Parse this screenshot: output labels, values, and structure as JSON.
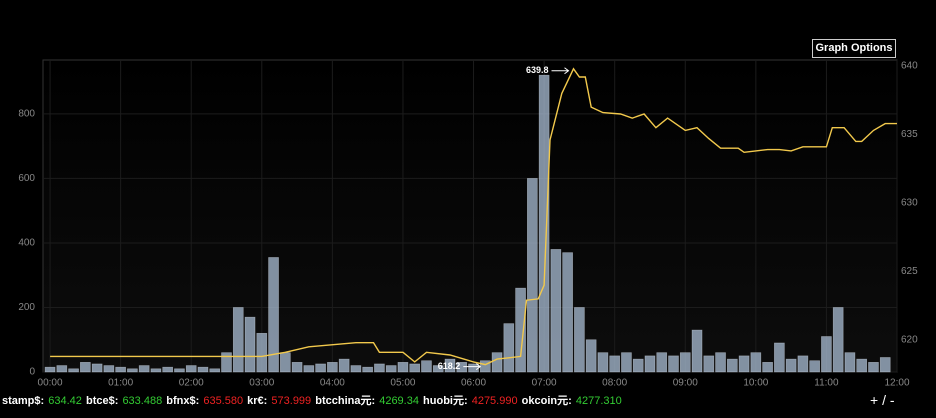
{
  "chart_data": {
    "type": "combo",
    "xlim": [
      -6,
      720
    ],
    "xticks": [
      {
        "value": 0,
        "label": "00:00"
      },
      {
        "value": 60,
        "label": "01:00"
      },
      {
        "value": 120,
        "label": "02:00"
      },
      {
        "value": 180,
        "label": "03:00"
      },
      {
        "value": 240,
        "label": "04:00"
      },
      {
        "value": 300,
        "label": "05:00"
      },
      {
        "value": 360,
        "label": "06:00"
      },
      {
        "value": 420,
        "label": "07:00"
      },
      {
        "value": 480,
        "label": "08:00"
      },
      {
        "value": 540,
        "label": "09:00"
      },
      {
        "value": 600,
        "label": "10:00"
      },
      {
        "value": 660,
        "label": "11:00"
      },
      {
        "value": 720,
        "label": "12:00"
      }
    ],
    "ylim": [
      0,
      967
    ],
    "yticks": [
      0,
      200,
      400,
      600,
      800
    ],
    "y2lim": [
      617.66,
      640.44
    ],
    "y2ticks": [
      620,
      625,
      630,
      635,
      640
    ],
    "grid": true,
    "series": [
      {
        "type": "bar",
        "color": "#a9bdd4",
        "x": [
          0,
          10,
          20,
          30,
          40,
          50,
          60,
          70,
          80,
          90,
          100,
          110,
          120,
          130,
          140,
          150,
          160,
          170,
          180,
          190,
          200,
          210,
          220,
          230,
          240,
          250,
          260,
          270,
          280,
          290,
          300,
          310,
          320,
          330,
          340,
          350,
          360,
          370,
          380,
          390,
          400,
          410,
          420,
          430,
          440,
          450,
          460,
          470,
          480,
          490,
          500,
          510,
          520,
          530,
          540,
          550,
          560,
          570,
          580,
          590,
          600,
          610,
          620,
          630,
          640,
          650,
          660,
          670,
          680,
          690,
          700,
          710
        ],
        "values": [
          15,
          20,
          10,
          30,
          25,
          20,
          15,
          10,
          20,
          10,
          15,
          10,
          20,
          15,
          10,
          60,
          200,
          170,
          120,
          355,
          60,
          30,
          20,
          25,
          30,
          40,
          20,
          15,
          25,
          20,
          30,
          25,
          35,
          20,
          40,
          30,
          25,
          35,
          60,
          150,
          260,
          600,
          920,
          380,
          370,
          200,
          100,
          60,
          50,
          60,
          40,
          50,
          60,
          50,
          60,
          130,
          50,
          60,
          40,
          50,
          60,
          30,
          90,
          40,
          50,
          35,
          110,
          200,
          60,
          40,
          30,
          45
        ]
      },
      {
        "type": "line",
        "axis": "y2",
        "color": "#f2c94c",
        "x": [
          0,
          180,
          200,
          220,
          260,
          275,
          280,
          300,
          310,
          320,
          340,
          360,
          370,
          380,
          390,
          400,
          405,
          415,
          420,
          425,
          435,
          445,
          450,
          455,
          460,
          470,
          485,
          495,
          505,
          515,
          525,
          540,
          550,
          560,
          570,
          585,
          590,
          600,
          610,
          620,
          630,
          640,
          650,
          660,
          665,
          675,
          685,
          690,
          700,
          710,
          720
        ],
        "values": [
          618.8,
          618.8,
          619.1,
          619.5,
          619.8,
          619.8,
          619.1,
          619.1,
          618.4,
          619.1,
          618.9,
          618.4,
          618.2,
          618.6,
          618.7,
          618.8,
          622.9,
          623,
          624,
          634.6,
          638,
          639.8,
          639.2,
          639.2,
          637,
          636.6,
          636.5,
          636.2,
          636.5,
          635.5,
          636.2,
          635.3,
          635.5,
          634.7,
          634,
          634,
          633.7,
          633.8,
          633.9,
          633.9,
          633.8,
          634.1,
          634.1,
          634.1,
          635.5,
          635.5,
          634.5,
          634.5,
          635.3,
          635.8,
          635.8
        ]
      }
    ],
    "annotations": [
      {
        "label": "639.8",
        "x": 445,
        "y": 639.8
      },
      {
        "label": "618.2",
        "x": 370,
        "y": 618.2
      }
    ]
  },
  "ticker": [
    {
      "name": "stamp$:",
      "value": "634.42",
      "color": "#3c3"
    },
    {
      "name": "btce$:",
      "value": "633.488",
      "color": "#3c3"
    },
    {
      "name": "bfnx$:",
      "value": "635.580",
      "color": "#e22"
    },
    {
      "name": "kr€:",
      "value": "573.999",
      "color": "#e22"
    },
    {
      "name": "btcchina元:",
      "value": "4269.34",
      "color": "#3c3"
    },
    {
      "name": "huobi元:",
      "value": "4275.990",
      "color": "#e22"
    },
    {
      "name": "okcoin元:",
      "value": "4277.310",
      "color": "#3c3"
    }
  ],
  "controls": {
    "graph_options": "Graph Options",
    "zoom": "+ / -"
  }
}
